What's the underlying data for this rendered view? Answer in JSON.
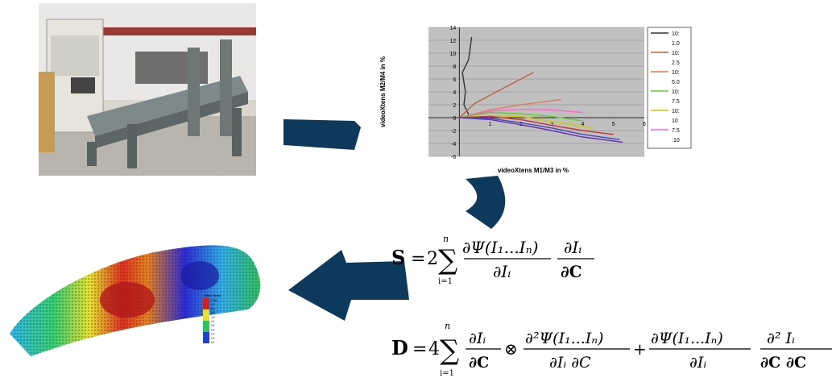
{
  "chart_data": {
    "type": "line",
    "xlabel": "videoXtens M1/M3 in %",
    "ylabel": "videoXtens M2/M4 in %",
    "xlim": [
      -1,
      6
    ],
    "ylim": [
      -6,
      14
    ],
    "xticks": [
      "1",
      "2",
      "3",
      "4",
      "5",
      "6"
    ],
    "yticks": [
      "14",
      "12",
      "10",
      "8",
      "6",
      "4",
      "2",
      "0",
      "-2",
      "-4",
      "-6"
    ],
    "legend_position": "right",
    "legend": [
      "10:",
      "1.0",
      "10:",
      "2.5",
      "10:",
      "5.0",
      "10:",
      "7.5",
      "10:",
      "10",
      "7.5",
      ":10"
    ],
    "series": [
      {
        "color": "#333333",
        "x": [
          0.4,
          0.3,
          0.1,
          0.2,
          0.15,
          0.3,
          0.35
        ],
        "y": [
          12.5,
          9,
          7,
          4,
          2,
          0.5,
          0
        ]
      },
      {
        "color": "#c0603a",
        "x": [
          0,
          0.5,
          1.2,
          1.8,
          2.4
        ],
        "y": [
          0,
          2.2,
          4.0,
          5.5,
          7.0
        ]
      },
      {
        "color": "#e07a5a",
        "x": [
          0,
          1,
          2,
          3.3
        ],
        "y": [
          0,
          1.2,
          2.0,
          2.8
        ]
      },
      {
        "color": "#ff66cc",
        "x": [
          0,
          1,
          2,
          3,
          4
        ],
        "y": [
          0,
          1.0,
          1.3,
          1.2,
          0.8
        ]
      },
      {
        "color": "#66cc33",
        "x": [
          0,
          1,
          2,
          3,
          4
        ],
        "y": [
          0,
          0.8,
          0.6,
          0.2,
          -0.5
        ]
      },
      {
        "color": "#cccc00",
        "x": [
          0,
          1,
          2,
          3,
          4.3
        ],
        "y": [
          0,
          0.3,
          0.2,
          -0.6,
          -1.6
        ]
      },
      {
        "color": "#cc3333",
        "x": [
          0,
          1,
          2,
          3,
          4,
          5
        ],
        "y": [
          0,
          0.2,
          -0.3,
          -1.2,
          -2.0,
          -2.6
        ]
      },
      {
        "color": "#4444cc",
        "x": [
          0,
          1,
          2,
          3,
          4,
          5.2
        ],
        "y": [
          0,
          -0.1,
          -0.8,
          -1.6,
          -2.6,
          -3.4
        ]
      },
      {
        "color": "#6633aa",
        "x": [
          0,
          1,
          2,
          3,
          4,
          5.3
        ],
        "y": [
          0,
          -0.3,
          -1.1,
          -2.0,
          -3.0,
          -3.8
        ]
      }
    ]
  },
  "colors": {
    "arrow": "#0d3a5c"
  },
  "colorbar": {
    "title": "Mises Stress",
    "ticks": [
      "7.913",
      "6.7",
      "6.0",
      "5.5",
      "4.9",
      "4.1",
      "3.5",
      "2.9",
      "2.2",
      "1.5",
      "0.4"
    ]
  },
  "equations": {
    "s": {
      "lhs": "S",
      "coef": "2",
      "sum_top": "n",
      "sum_bot": "i=1",
      "num1": "∂Ψ(I₁...Iₙ)",
      "den1": "∂Iᵢ",
      "num2": "∂Iᵢ",
      "den2": "∂C"
    },
    "d": {
      "lhs": "D",
      "coef": "4",
      "sum_top": "n",
      "sum_bot": "i=1",
      "num1": "∂Iᵢ",
      "den1": "∂C",
      "num2": "∂²Ψ(I₁...Iₙ)",
      "den2": "∂Iᵢ ∂C",
      "num3": "∂Ψ(I₁...Iₙ)",
      "den3": "∂Iᵢ",
      "num4": "∂² Iᵢ",
      "den4": "∂C ∂C"
    }
  }
}
